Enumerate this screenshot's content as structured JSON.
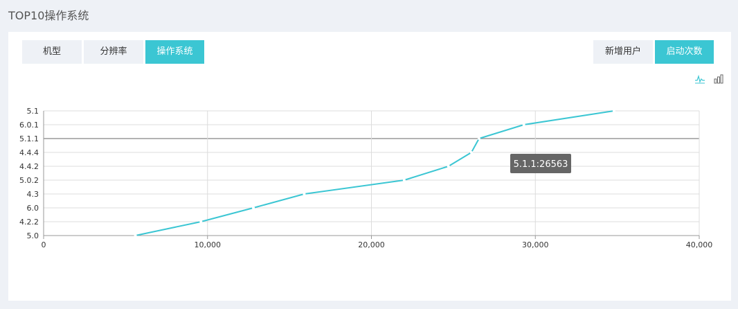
{
  "page": {
    "title": "TOP10操作系统"
  },
  "tabs_left": [
    {
      "label": "机型",
      "active": false
    },
    {
      "label": "分辨率",
      "active": false
    },
    {
      "label": "操作系统",
      "active": true
    }
  ],
  "tabs_right": [
    {
      "label": "新增用户",
      "active": false
    },
    {
      "label": "启动次数",
      "active": true
    }
  ],
  "icons": {
    "line": "line-chart-icon",
    "bar": "bar-chart-icon"
  },
  "colors": {
    "accent": "#3bc6d3",
    "tooltip_bg": "#666666"
  },
  "chart_data": {
    "type": "line",
    "categories": [
      "5.1",
      "6.0.1",
      "5.1.1",
      "4.4.4",
      "4.4.2",
      "5.0.2",
      "4.3",
      "6.0",
      "4.2.2",
      "5.0"
    ],
    "values": [
      34800,
      29300,
      26563,
      26100,
      24700,
      22000,
      15900,
      12800,
      9600,
      5600
    ],
    "x_ticks": [
      "0",
      "10,000",
      "20,000",
      "30,000",
      "40,000"
    ],
    "xlim": [
      0,
      40000
    ],
    "highlight_category": "5.1.1",
    "tooltip": "5.1.1:26563"
  }
}
